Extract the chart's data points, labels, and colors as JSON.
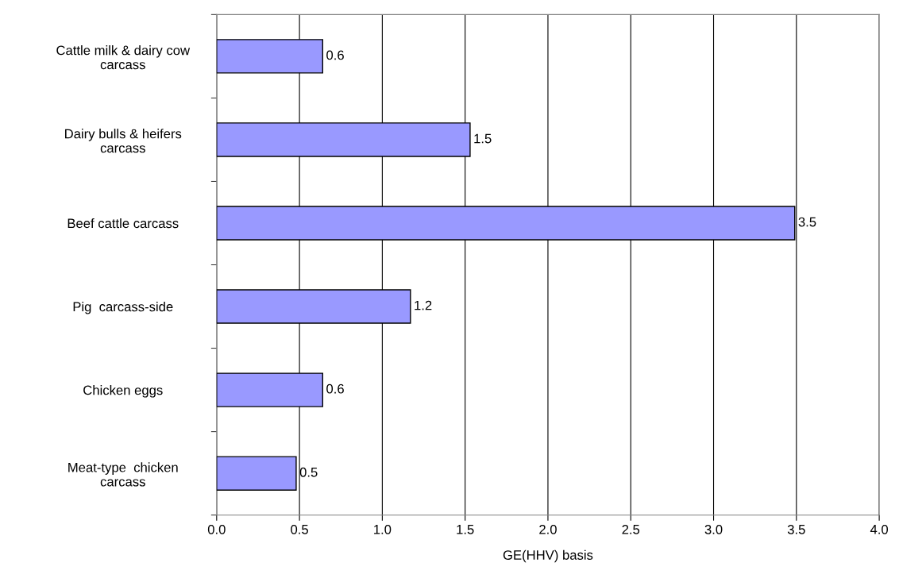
{
  "chart_data": {
    "type": "bar",
    "orientation": "horizontal",
    "categories": [
      "Cattle milk & dairy cow\ncarcass",
      "Dairy bulls & heifers\ncarcass",
      "Beef cattle carcass",
      "Pig  carcass-side",
      "Chicken eggs",
      "Meat-type  chicken\ncarcass"
    ],
    "values": [
      0.64,
      1.53,
      3.49,
      1.17,
      0.64,
      0.48
    ],
    "value_labels": [
      "0.6",
      "1.5",
      "3.5",
      "1.2",
      "0.6",
      "0.5"
    ],
    "color": "#9999ff",
    "xlabel": "GE(HHV) basis",
    "xlim": [
      0,
      4
    ],
    "xticks": [
      {
        "value": 0,
        "label": "0.0"
      },
      {
        "value": 0.5,
        "label": "0.5"
      },
      {
        "value": 1,
        "label": "1.0"
      },
      {
        "value": 1.5,
        "label": "1.5"
      },
      {
        "value": 2,
        "label": "2.0"
      },
      {
        "value": 2.5,
        "label": "2.5"
      },
      {
        "value": 3,
        "label": "3.0"
      },
      {
        "value": 3.5,
        "label": "3.5"
      },
      {
        "value": 4,
        "label": "4.0"
      }
    ],
    "grid": "x"
  }
}
